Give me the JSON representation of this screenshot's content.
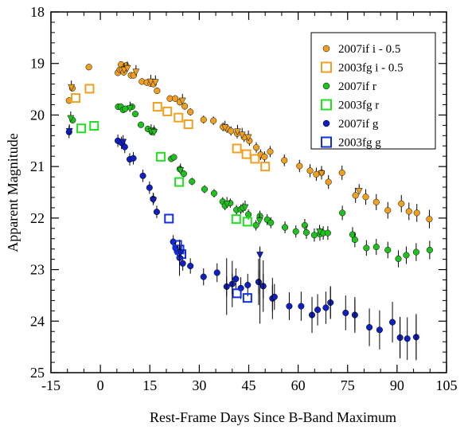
{
  "chart_data": {
    "type": "scatter",
    "xlabel": "Rest-Frame Days Since B-Band Maximum",
    "ylabel": "Apparent Magnitude",
    "xlim": [
      -15,
      105
    ],
    "ylim": [
      18,
      25
    ],
    "y_inverted": true,
    "xticks": [
      "-15",
      "0",
      "15",
      "30",
      "45",
      "60",
      "75",
      "90",
      "105"
    ],
    "yticks": [
      "18",
      "19",
      "20",
      "21",
      "22",
      "23",
      "24",
      "25"
    ],
    "legend_position": "top-right",
    "series": [
      {
        "name": "2007if i - 0.5",
        "color": "#f0a020",
        "marker": "circle",
        "points": [
          [
            -9.5,
            19.72
          ],
          [
            -8.5,
            19.48
          ],
          [
            -3.5,
            19.07
          ],
          [
            5.3,
            19.18
          ],
          [
            5.9,
            19.12
          ],
          [
            6.3,
            19.02
          ],
          [
            6.6,
            19.12
          ],
          [
            7.1,
            19.17
          ],
          [
            7.8,
            19.04
          ],
          [
            9.3,
            19.23
          ],
          [
            10.1,
            19.23
          ],
          [
            12.6,
            19.35
          ],
          [
            14.1,
            19.37
          ],
          [
            15.3,
            19.39
          ],
          [
            16.1,
            19.4
          ],
          [
            17.2,
            19.53
          ],
          [
            21.1,
            19.68
          ],
          [
            22.7,
            19.68
          ],
          [
            24.1,
            19.75
          ],
          [
            25.6,
            19.83
          ],
          [
            27.3,
            19.94
          ],
          [
            31.3,
            20.09
          ],
          [
            34.3,
            20.11
          ],
          [
            37.2,
            20.23
          ],
          [
            38.4,
            20.26
          ],
          [
            39.6,
            20.31
          ],
          [
            41.5,
            20.36
          ],
          [
            43.6,
            20.43
          ],
          [
            45.2,
            20.5
          ],
          [
            47.3,
            20.63
          ],
          [
            48.6,
            20.77
          ],
          [
            49.8,
            20.81
          ],
          [
            51.5,
            20.71
          ],
          [
            55.8,
            20.88
          ],
          [
            60.4,
            20.99
          ],
          [
            63.6,
            21.08
          ],
          [
            65.5,
            21.15
          ],
          [
            67.1,
            21.12
          ],
          [
            69.2,
            21.3
          ],
          [
            73.3,
            21.12
          ],
          [
            77.4,
            21.56
          ],
          [
            80.5,
            21.59
          ],
          [
            83.7,
            21.69
          ],
          [
            87.2,
            21.85
          ],
          [
            91.3,
            21.72
          ],
          [
            93.6,
            21.87
          ],
          [
            96.0,
            21.9
          ],
          [
            99.8,
            22.02
          ]
        ]
      },
      {
        "name": "2003fg i - 0.5",
        "color": "#f0a020",
        "marker": "square-open",
        "points": [
          [
            -7.5,
            19.67
          ],
          [
            -3.3,
            19.49
          ],
          [
            17.3,
            19.84
          ],
          [
            20.3,
            19.93
          ],
          [
            23.7,
            20.05
          ],
          [
            26.7,
            20.18
          ],
          [
            41.4,
            20.65
          ],
          [
            44.3,
            20.76
          ],
          [
            46.9,
            20.85
          ],
          [
            50.0,
            21.0
          ]
        ]
      },
      {
        "name": "2007if r",
        "color": "#20c020",
        "marker": "circle",
        "points": [
          [
            -8.4,
            20.1
          ],
          [
            5.4,
            19.84
          ],
          [
            6.2,
            19.84
          ],
          [
            6.9,
            19.9
          ],
          [
            7.5,
            19.88
          ],
          [
            9.6,
            19.84
          ],
          [
            10.6,
            19.98
          ],
          [
            12.3,
            20.19
          ],
          [
            14.4,
            20.27
          ],
          [
            15.6,
            20.33
          ],
          [
            16.2,
            20.3
          ],
          [
            21.5,
            20.85
          ],
          [
            22.3,
            20.82
          ],
          [
            24.1,
            21.05
          ],
          [
            25.3,
            21.14
          ],
          [
            27.8,
            21.29
          ],
          [
            31.6,
            21.44
          ],
          [
            34.5,
            21.52
          ],
          [
            37.1,
            21.68
          ],
          [
            37.8,
            21.76
          ],
          [
            39.4,
            21.71
          ],
          [
            41.3,
            21.84
          ],
          [
            42.6,
            21.83
          ],
          [
            43.3,
            21.8
          ],
          [
            44.9,
            21.93
          ],
          [
            47.2,
            22.14
          ],
          [
            48.4,
            21.96
          ],
          [
            50.6,
            22.03
          ],
          [
            51.7,
            22.09
          ],
          [
            56.0,
            22.18
          ],
          [
            59.3,
            22.26
          ],
          [
            62.0,
            22.14
          ],
          [
            62.5,
            22.28
          ],
          [
            64.9,
            22.33
          ],
          [
            66.6,
            22.31
          ],
          [
            67.6,
            22.29
          ],
          [
            69.0,
            22.29
          ],
          [
            73.4,
            21.9
          ],
          [
            76.5,
            22.32
          ],
          [
            77.2,
            22.42
          ],
          [
            80.7,
            22.58
          ],
          [
            83.7,
            22.56
          ],
          [
            87.2,
            22.62
          ],
          [
            90.4,
            22.79
          ],
          [
            92.8,
            22.72
          ],
          [
            95.8,
            22.66
          ],
          [
            99.9,
            22.62
          ]
        ]
      },
      {
        "name": "2003fg r",
        "color": "#20e020",
        "marker": "square-open",
        "points": [
          [
            -5.8,
            20.26
          ],
          [
            -1.9,
            20.21
          ],
          [
            18.3,
            20.81
          ],
          [
            23.9,
            21.3
          ],
          [
            41.2,
            22.02
          ],
          [
            44.6,
            22.07
          ]
        ]
      },
      {
        "name": "2007if g",
        "color": "#1020c0",
        "marker": "circle",
        "points": [
          [
            -9.5,
            20.33
          ],
          [
            5.3,
            20.5
          ],
          [
            6.4,
            20.54
          ],
          [
            7.4,
            20.62
          ],
          [
            8.9,
            20.86
          ],
          [
            10.0,
            20.84
          ],
          [
            12.9,
            21.18
          ],
          [
            14.9,
            21.41
          ],
          [
            16.0,
            21.63
          ],
          [
            17.1,
            21.88
          ],
          [
            22.1,
            22.46
          ],
          [
            22.8,
            22.58
          ],
          [
            23.3,
            22.65
          ],
          [
            24.0,
            22.77
          ],
          [
            25.0,
            22.88
          ],
          [
            27.3,
            22.93
          ],
          [
            31.3,
            23.14
          ],
          [
            35.4,
            23.06
          ],
          [
            38.3,
            23.33
          ],
          [
            40.0,
            23.28
          ],
          [
            41.1,
            23.18
          ],
          [
            42.6,
            23.36
          ],
          [
            44.7,
            23.3
          ],
          [
            48.0,
            23.24
          ],
          [
            49.4,
            23.32
          ],
          [
            52.2,
            23.56
          ],
          [
            52.8,
            23.53
          ],
          [
            57.3,
            23.71
          ],
          [
            60.9,
            23.71
          ],
          [
            64.2,
            23.88
          ],
          [
            65.9,
            23.78
          ],
          [
            68.4,
            23.74
          ],
          [
            69.8,
            23.64
          ],
          [
            74.4,
            23.84
          ],
          [
            77.2,
            23.88
          ],
          [
            81.6,
            24.12
          ],
          [
            84.7,
            24.17
          ],
          [
            88.6,
            24.02
          ],
          [
            90.9,
            24.32
          ],
          [
            93.1,
            24.34
          ],
          [
            95.8,
            24.31
          ]
        ]
      },
      {
        "name": "2003fg g",
        "color": "#1030e0",
        "marker": "square-open",
        "points": [
          [
            20.8,
            22.01
          ],
          [
            23.3,
            22.52
          ],
          [
            24.0,
            22.61
          ],
          [
            24.6,
            22.7
          ],
          [
            41.4,
            23.46
          ],
          [
            44.6,
            23.55
          ]
        ]
      }
    ],
    "upper_limits": [
      {
        "series": 0,
        "x": [
          -8.8,
          7.2,
          8.2,
          10.8,
          15.3,
          16.7,
          24.9,
          37.8,
          41.6,
          43.0,
          44.9,
          67.1,
          78.5
        ],
        "y": [
          19.47,
          19.13,
          19.1,
          19.17,
          19.36,
          19.37,
          19.73,
          20.25,
          20.33,
          20.39,
          20.44,
          21.14,
          21.48
        ]
      },
      {
        "series": 2,
        "x": [
          -9.0,
          9.0,
          15.4,
          16.3,
          24.3,
          38.4,
          43.9,
          48.3,
          66.5
        ],
        "y": [
          20.07,
          19.88,
          20.32,
          20.34,
          21.08,
          21.73,
          21.8,
          22.06,
          22.27
        ]
      },
      {
        "series": 4,
        "x": [
          -9.4,
          6.9,
          16.1,
          24.3,
          48.4
        ],
        "y": [
          20.32,
          20.53,
          21.66,
          22.68,
          22.72
        ]
      }
    ]
  },
  "legend": {
    "items": [
      {
        "label": "2007if i - 0.5",
        "color": "#f0a020",
        "marker": "circle"
      },
      {
        "label": "2003fg i - 0.5",
        "color": "#f0a020",
        "marker": "square-open"
      },
      {
        "label": "2007if r",
        "color": "#20c020",
        "marker": "circle"
      },
      {
        "label": "2003fg r",
        "color": "#20e020",
        "marker": "square-open"
      },
      {
        "label": "2007if g",
        "color": "#1020c0",
        "marker": "circle"
      },
      {
        "label": "2003fg g",
        "color": "#1030e0",
        "marker": "square-open"
      }
    ]
  }
}
